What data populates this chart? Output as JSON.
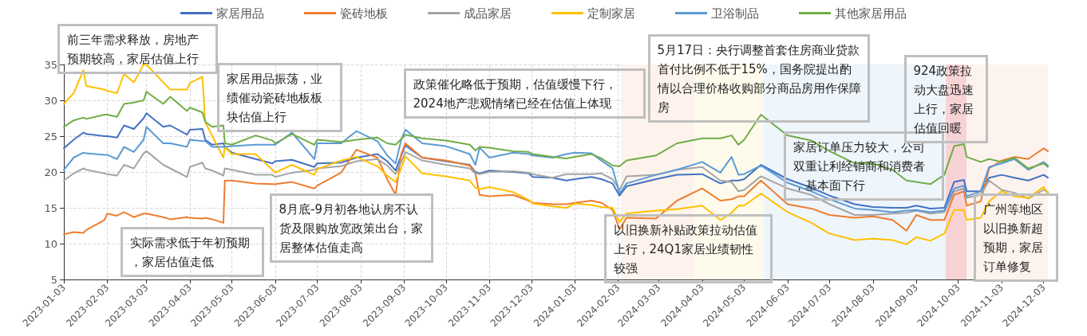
{
  "chart_data": {
    "type": "line",
    "legend": "top",
    "grid": true,
    "marker": "none",
    "line_style": "solid",
    "ylim": [
      5,
      35
    ],
    "yticks": [
      5,
      10,
      15,
      20,
      25,
      30,
      35
    ],
    "xlim": [
      "2023-01-03",
      "2024-12-06"
    ],
    "xticks": [
      "2023-01-03",
      "2023-02-03",
      "2023-03-03",
      "2023-04-03",
      "2023-05-03",
      "2023-06-03",
      "2023-07-03",
      "2023-08-03",
      "2023-09-03",
      "2023-10-03",
      "2023-11-03",
      "2023-12-03",
      "2024-01-03",
      "2024-02-03",
      "2024-03-03",
      "2024-04-03",
      "2024-05-03",
      "2024-06-03",
      "2024-07-03",
      "2024-08-03",
      "2024-09-03",
      "2024-10-03",
      "2024-11-03",
      "2024-12-03"
    ],
    "x": [
      "2023-01-03",
      "2023-01-10",
      "2023-01-17",
      "2023-01-19",
      "2023-02-01",
      "2023-02-03",
      "2023-02-10",
      "2023-02-15",
      "2023-02-22",
      "2023-03-01",
      "2023-03-03",
      "2023-03-15",
      "2023-03-20",
      "2023-04-01",
      "2023-04-03",
      "2023-04-12",
      "2023-04-14",
      "2023-04-19",
      "2023-04-27",
      "2023-04-28",
      "2023-05-03",
      "2023-05-20",
      "2023-06-01",
      "2023-06-03",
      "2023-06-15",
      "2023-07-01",
      "2023-07-03",
      "2023-07-20",
      "2023-07-31",
      "2023-08-15",
      "2023-08-22",
      "2023-08-28",
      "2023-09-01",
      "2023-09-04",
      "2023-09-16",
      "2023-10-03",
      "2023-10-20",
      "2023-10-24",
      "2023-10-27",
      "2023-11-03",
      "2023-11-20",
      "2023-12-01",
      "2023-12-04",
      "2023-12-18",
      "2023-12-28",
      "2024-01-03",
      "2024-01-15",
      "2024-01-22",
      "2024-01-30",
      "2024-02-04",
      "2024-02-09",
      "2024-03-01",
      "2024-03-16",
      "2024-04-03",
      "2024-04-16",
      "2024-04-24",
      "2024-04-29",
      "2024-05-03",
      "2024-05-15",
      "2024-06-03",
      "2024-06-20",
      "2024-07-03",
      "2024-07-21",
      "2024-08-03",
      "2024-08-17",
      "2024-08-27",
      "2024-09-03",
      "2024-09-13",
      "2024-09-23",
      "2024-09-30",
      "2024-10-07",
      "2024-10-09",
      "2024-10-19",
      "2024-10-25",
      "2024-11-03",
      "2024-11-12",
      "2024-11-22",
      "2024-12-03",
      "2024-12-06"
    ],
    "bands": [
      {
        "axis": "x",
        "from": "2024-02-05",
        "to": "2024-03-28",
        "color": "#fdf3ec"
      },
      {
        "axis": "x",
        "from": "2024-03-28",
        "to": "2024-05-17",
        "color": "#fefaec"
      },
      {
        "axis": "x",
        "from": "2024-05-17",
        "to": "2024-09-24",
        "color": "#eef5fb"
      },
      {
        "axis": "x",
        "from": "2024-09-24",
        "to": "2024-10-09",
        "color": "#f8d3d6"
      },
      {
        "axis": "x",
        "from": "2024-10-09",
        "to": "2024-12-06",
        "color": "#fdf3ee"
      }
    ],
    "series": [
      {
        "name": "家居用品",
        "color": "#4472c4",
        "values": [
          23.3,
          24.5,
          25.5,
          25.3,
          25.0,
          25.0,
          24.8,
          26.5,
          26.0,
          27.5,
          28.2,
          26.3,
          26.5,
          25.2,
          25.9,
          26.0,
          24.5,
          23.8,
          24.0,
          23.5,
          22.7,
          21.8,
          21.2,
          21.5,
          21.7,
          20.7,
          21.2,
          21.3,
          22.0,
          22.5,
          21.5,
          20.2,
          22.3,
          23.7,
          22.0,
          21.5,
          21.0,
          20.0,
          19.8,
          20.2,
          20.0,
          19.8,
          19.3,
          19.2,
          18.8,
          19.0,
          19.3,
          19.0,
          18.4,
          16.7,
          18.0,
          19.0,
          19.6,
          19.7,
          18.4,
          18.8,
          18.8,
          19.0,
          21.0,
          19.0,
          17.8,
          16.7,
          15.5,
          15.1,
          15.0,
          15.0,
          15.3,
          14.9,
          15.0,
          18.6,
          18.9,
          17.3,
          17.3,
          19.2,
          19.6,
          19.2,
          18.8,
          19.6,
          19.2
        ]
      },
      {
        "name": "瓷砖地板",
        "color": "#ed7d31",
        "values": [
          11.3,
          11.6,
          11.5,
          11.9,
          13.3,
          14.2,
          13.9,
          14.4,
          13.7,
          14.2,
          14.2,
          13.7,
          13.4,
          13.7,
          13.6,
          13.5,
          13.6,
          13.4,
          12.9,
          18.8,
          18.8,
          18.4,
          18.3,
          18.3,
          18.6,
          17.7,
          18.1,
          19.9,
          23.1,
          22.0,
          19.0,
          16.8,
          22.5,
          24.0,
          22.0,
          21.6,
          20.9,
          19.8,
          16.8,
          16.6,
          16.8,
          16.0,
          15.7,
          15.5,
          15.5,
          15.7,
          16.0,
          15.7,
          14.7,
          12.0,
          13.6,
          13.5,
          16.0,
          17.7,
          16.0,
          16.2,
          16.6,
          16.6,
          18.8,
          15.5,
          14.9,
          14.0,
          13.6,
          13.8,
          13.3,
          11.8,
          14.0,
          13.3,
          13.3,
          16.8,
          17.3,
          15.3,
          15.9,
          20.5,
          21.6,
          22.1,
          21.8,
          23.3,
          22.9
        ]
      },
      {
        "name": "成品家居",
        "color": "#a5a5a5",
        "values": [
          18.8,
          19.8,
          20.5,
          20.3,
          19.8,
          19.7,
          19.5,
          21.0,
          20.5,
          22.6,
          22.9,
          21.0,
          20.5,
          19.3,
          20.7,
          21.3,
          20.5,
          20.2,
          19.5,
          20.5,
          20.3,
          19.6,
          19.6,
          19.3,
          19.9,
          20.3,
          20.5,
          20.8,
          21.5,
          21.8,
          20.9,
          19.7,
          21.4,
          22.8,
          21.6,
          21.0,
          20.5,
          19.8,
          19.7,
          20.0,
          20.1,
          19.9,
          19.7,
          19.2,
          19.7,
          19.7,
          19.7,
          19.8,
          19.0,
          17.5,
          19.4,
          19.6,
          20.3,
          20.7,
          18.8,
          18.6,
          17.3,
          17.5,
          19.4,
          17.7,
          16.8,
          15.5,
          14.0,
          14.0,
          14.2,
          14.3,
          14.6,
          14.2,
          14.4,
          17.3,
          17.7,
          16.4,
          16.8,
          18.8,
          17.5,
          17.1,
          16.3,
          17.5,
          17.2
        ]
      },
      {
        "name": "定制家居",
        "color": "#ffc000",
        "values": [
          29.5,
          31.0,
          34.2,
          32.0,
          31.5,
          31.3,
          31.0,
          33.7,
          32.5,
          35,
          35,
          32.5,
          31.5,
          31.5,
          32.4,
          33.3,
          27.0,
          25.0,
          22.0,
          23.5,
          22.5,
          22.5,
          20.3,
          19.9,
          21.0,
          19.6,
          20.4,
          21.6,
          22.1,
          20.8,
          19.5,
          18.6,
          20.5,
          22.2,
          19.8,
          19.4,
          18.8,
          17.8,
          17.6,
          17.9,
          17.2,
          16.1,
          15.6,
          15.2,
          15.0,
          15.6,
          15.4,
          15.1,
          15.0,
          13.0,
          14.2,
          14.6,
          14.8,
          15.3,
          13.3,
          14.3,
          15.3,
          15.3,
          17.0,
          14.4,
          12.9,
          11.4,
          10.5,
          10.7,
          10.5,
          9.9,
          10.9,
          10.4,
          11.4,
          14.7,
          14.7,
          13.3,
          13.6,
          15.9,
          17.3,
          16.6,
          16.4,
          17.9,
          17.0
        ]
      },
      {
        "name": "卫浴制品",
        "color": "#5b9bd5",
        "values": [
          20.3,
          22.0,
          22.7,
          22.6,
          22.4,
          22.4,
          21.8,
          23.5,
          22.8,
          24.5,
          26.3,
          24.0,
          24.0,
          23.5,
          24.5,
          24.3,
          24.3,
          23.5,
          23.5,
          23.5,
          23.6,
          23.8,
          23.8,
          23.8,
          25.5,
          21.8,
          24.0,
          24.0,
          25.7,
          24.3,
          22.3,
          21.2,
          24.5,
          25.9,
          24.0,
          23.6,
          22.5,
          21.0,
          23.4,
          22.0,
          22.7,
          22.5,
          22.3,
          22.0,
          22.5,
          22.7,
          22.6,
          21.6,
          20.5,
          17.0,
          18.4,
          19.6,
          20.3,
          21.4,
          19.9,
          22.1,
          19.6,
          19.7,
          20.9,
          18.5,
          17.3,
          16.2,
          14.9,
          14.7,
          14.4,
          14.6,
          14.7,
          14.4,
          14.6,
          17.7,
          18.1,
          16.6,
          17.3,
          20.7,
          21.2,
          21.8,
          20.3,
          21.4,
          20.9
        ]
      },
      {
        "name": "其他家居用品",
        "color": "#70ad47",
        "values": [
          26.3,
          27.2,
          27.6,
          27.4,
          28.0,
          28.0,
          27.7,
          29.5,
          29.7,
          30.0,
          31.2,
          29.5,
          30.5,
          28.5,
          29.0,
          28.3,
          27.0,
          26.3,
          26.5,
          24.0,
          23.8,
          25.1,
          24.4,
          24.0,
          25.3,
          23.8,
          24.5,
          24.2,
          24.5,
          24.8,
          24.0,
          23.8,
          24.6,
          25.2,
          24.7,
          24.4,
          23.8,
          23.0,
          23.5,
          23.4,
          22.9,
          22.8,
          22.5,
          22.1,
          21.9,
          22.1,
          22.5,
          21.9,
          20.9,
          20.8,
          21.6,
          22.3,
          24.0,
          24.7,
          24.7,
          25.1,
          23.8,
          24.5,
          28.0,
          25.1,
          24.4,
          22.9,
          21.2,
          21.2,
          20.3,
          18.8,
          18.6,
          18.3,
          19.6,
          23.6,
          23.9,
          22.1,
          21.4,
          21.8,
          21.4,
          22.0,
          20.5,
          21.2,
          20.7
        ]
      }
    ],
    "annotations": [
      "前三年需求释放，房地产预期较高，家居估值上行",
      "家居用品振荡，业绩催动瓷砖地板板块估值上行",
      "实际需求低于年初预期，家居估值走低",
      "8月底-9月初各地认房不认货及限购放宽政策出台，家居整体估值走高",
      "政策催化略低于预期，估值缓慢下行，2024地产悲观情绪已经在估值上体现",
      "5月17日：央行调整首套住房商业贷款首付比例不低于15%，国务院提出酌情以合理价格收购部分商品房用作保障房",
      "以旧换新补贴政策拉动估值上行，24Q1家居业绩韧性较强",
      "家居订单压力较大，公司双重让利经销商和消费者，基本面下行",
      "924政策拉动大盘迅速上行，家居估值回暖",
      "广州等地区以旧换新超预期，家居订单修复"
    ]
  }
}
